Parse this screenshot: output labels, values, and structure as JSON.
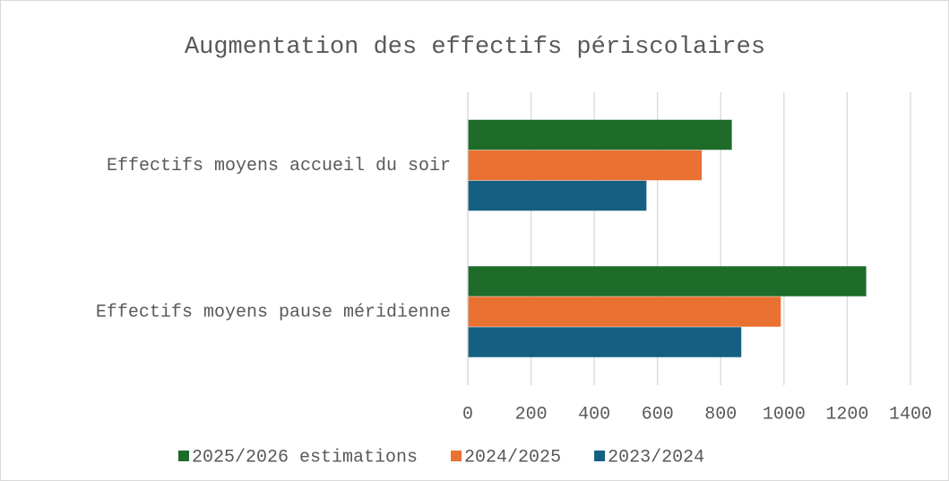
{
  "chart_data": {
    "type": "hbar",
    "title": "Augmentation des effectifs périscolaires",
    "categories": [
      "Effectifs moyens accueil du soir",
      "Effectifs moyens pause méridienne"
    ],
    "series": [
      {
        "name": "2025/2026 estimations",
        "color": "#1e6b2a",
        "values": [
          835,
          1260
        ]
      },
      {
        "name": "2024/2025",
        "color": "#e97132",
        "values": [
          740,
          990
        ]
      },
      {
        "name": "2023/2024",
        "color": "#156082",
        "values": [
          565,
          865
        ]
      }
    ],
    "xlim": [
      0,
      1400
    ],
    "xticks": [
      0,
      200,
      400,
      600,
      800,
      1000,
      1200,
      1400
    ],
    "grid": true,
    "legend": "bottom"
  }
}
